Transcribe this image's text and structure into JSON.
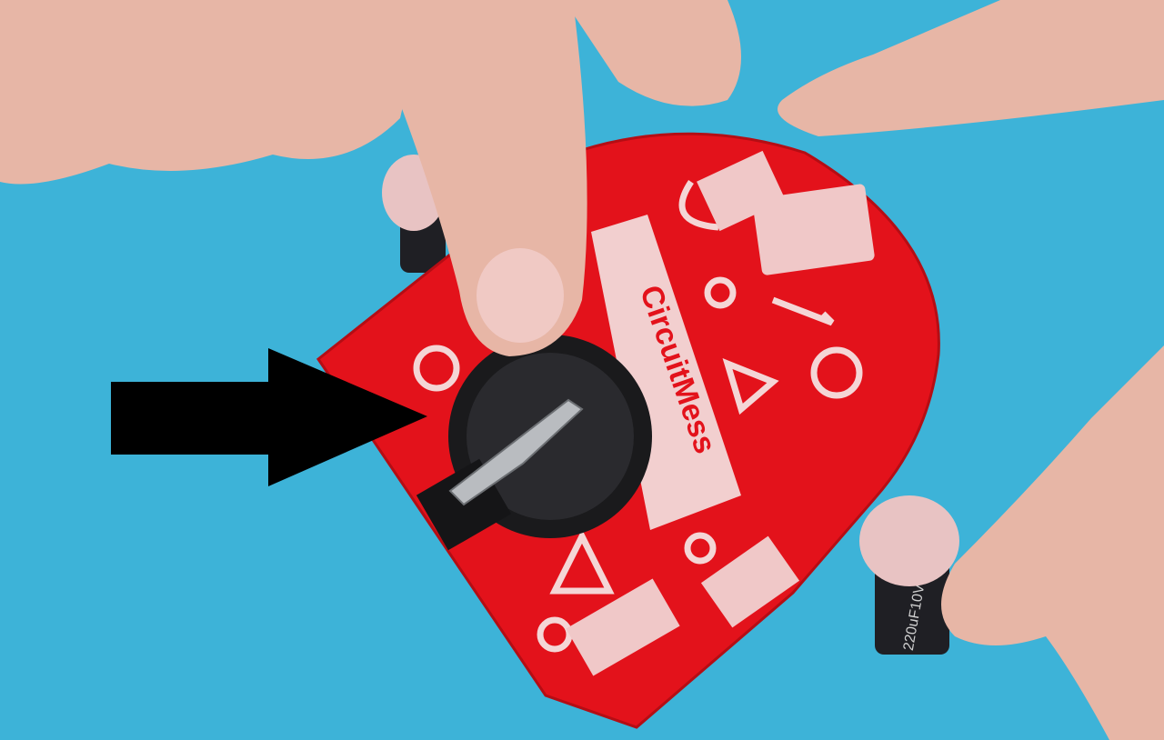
{
  "board": {
    "logo_text": "CircuitMess"
  },
  "capacitor": {
    "label": "220uF10V"
  }
}
